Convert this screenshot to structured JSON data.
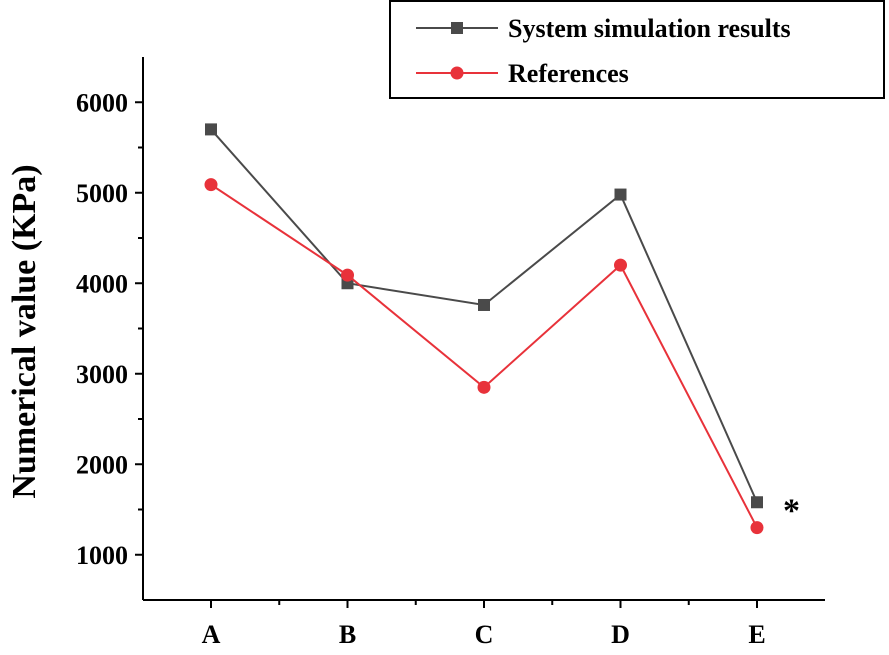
{
  "chart_data": {
    "type": "line",
    "title": "",
    "xlabel": "",
    "ylabel": "Numerical value (KPa)",
    "categories": [
      "A",
      "B",
      "C",
      "D",
      "E"
    ],
    "ylim": [
      500,
      6500
    ],
    "yticks": [
      1000,
      2000,
      3000,
      4000,
      5000,
      6000
    ],
    "grid": false,
    "legend_position": "top-right",
    "series": [
      {
        "name": "System simulation results",
        "color": "#4a4a4a",
        "marker": "square",
        "values": [
          5700,
          4000,
          3760,
          4980,
          1580
        ]
      },
      {
        "name": "References",
        "color": "#e8323a",
        "marker": "circle",
        "values": [
          5090,
          4090,
          2850,
          4200,
          1300
        ]
      }
    ],
    "annotations": [
      {
        "text": "*",
        "category": "E",
        "value": 1580
      }
    ]
  }
}
